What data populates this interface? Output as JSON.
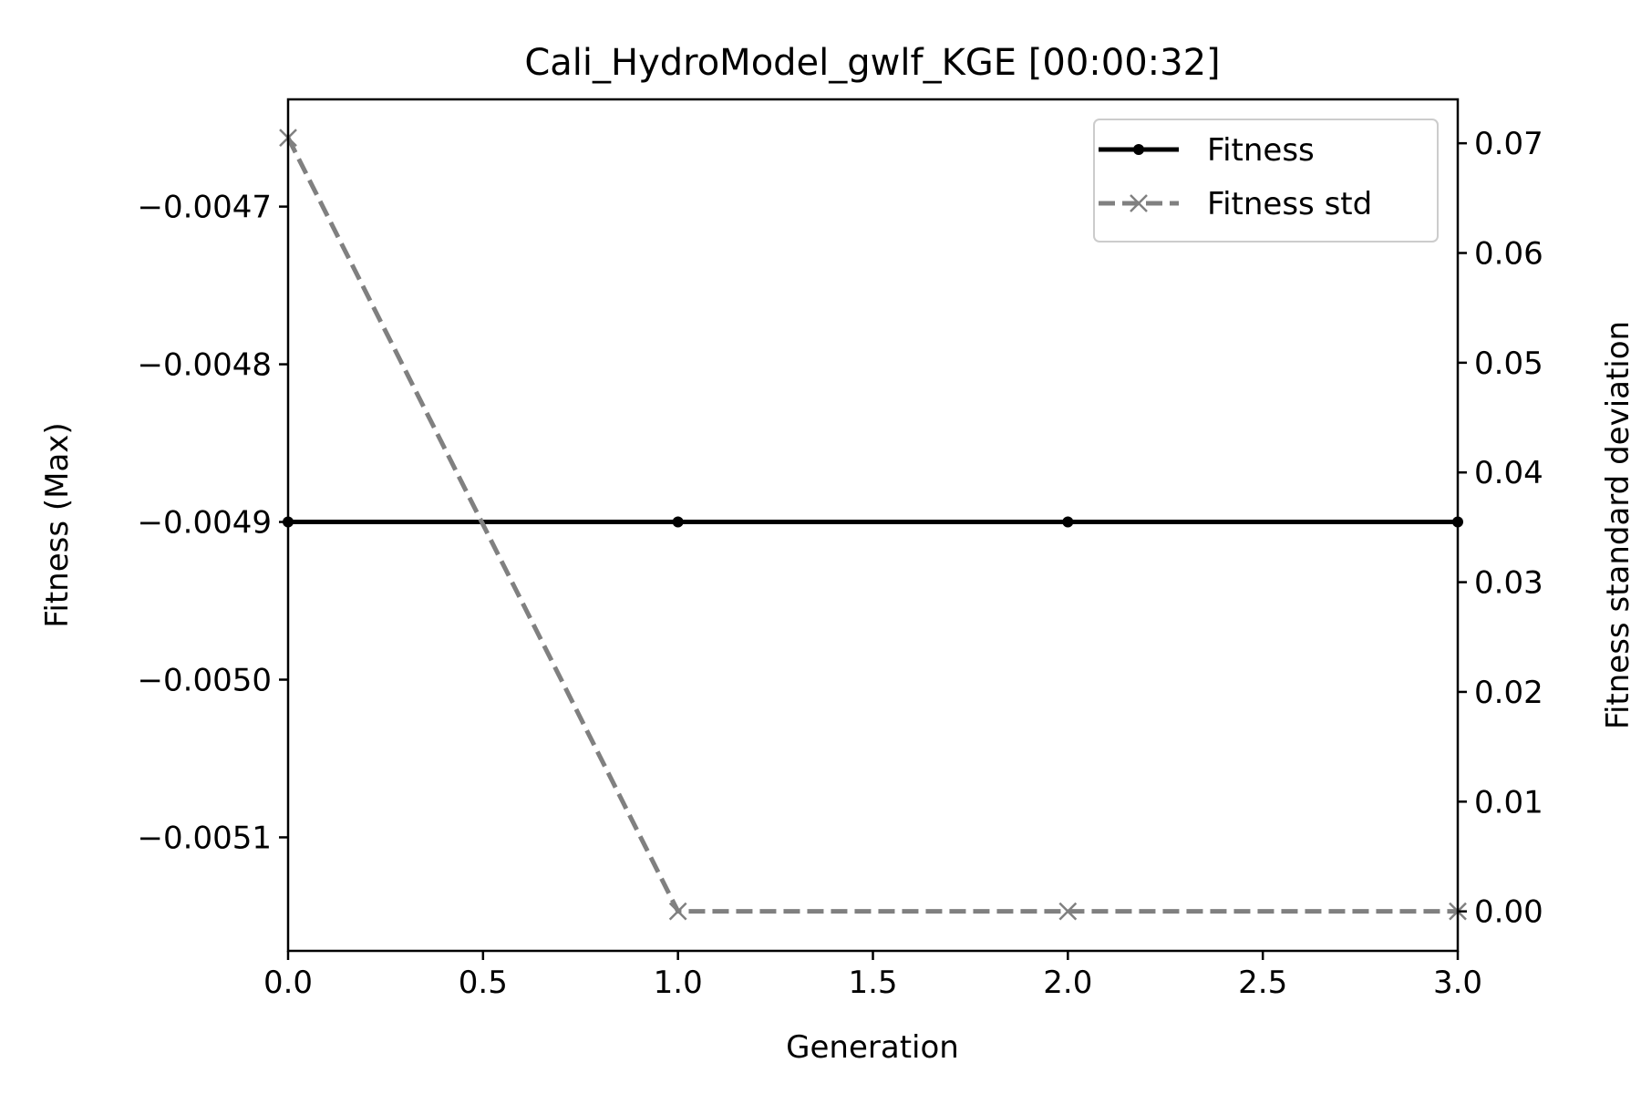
{
  "chart_data": {
    "type": "line",
    "title": "Cali_HydroModel_gwlf_KGE  [00:00:32]",
    "xlabel": "Generation",
    "ylabel_left": "Fitness (Max)",
    "ylabel_right": "Fitness standard deviation",
    "xlim": [
      0.0,
      3.0
    ],
    "ylim_left": [
      -0.005172,
      -0.004632
    ],
    "ylim_right": [
      -0.0036,
      0.074
    ],
    "x_ticks": [
      0.0,
      0.5,
      1.0,
      1.5,
      2.0,
      2.5,
      3.0
    ],
    "x_tick_labels": [
      "0.0",
      "0.5",
      "1.0",
      "1.5",
      "2.0",
      "2.5",
      "3.0"
    ],
    "y_left_ticks": [
      -0.0047,
      -0.0048,
      -0.0049,
      -0.005,
      -0.0051
    ],
    "y_left_tick_labels": [
      "−0.0047",
      "−0.0048",
      "−0.0049",
      "−0.0050",
      "−0.0051"
    ],
    "y_right_ticks": [
      0.0,
      0.01,
      0.02,
      0.03,
      0.04,
      0.05,
      0.06,
      0.07
    ],
    "y_right_tick_labels": [
      "0.00",
      "0.01",
      "0.02",
      "0.03",
      "0.04",
      "0.05",
      "0.06",
      "0.07"
    ],
    "x": [
      0,
      1,
      2,
      3
    ],
    "series": [
      {
        "name": "Fitness",
        "axis": "left",
        "values": [
          -0.0049,
          -0.0049,
          -0.0049,
          -0.0049
        ],
        "color": "#000000",
        "style": "solid",
        "marker": "dot"
      },
      {
        "name": "Fitness std",
        "axis": "right",
        "values": [
          0.0705,
          0.0,
          0.0,
          0.0
        ],
        "color": "#808080",
        "style": "dashed",
        "marker": "x"
      }
    ],
    "legend_position": "top-right",
    "grid": false
  }
}
